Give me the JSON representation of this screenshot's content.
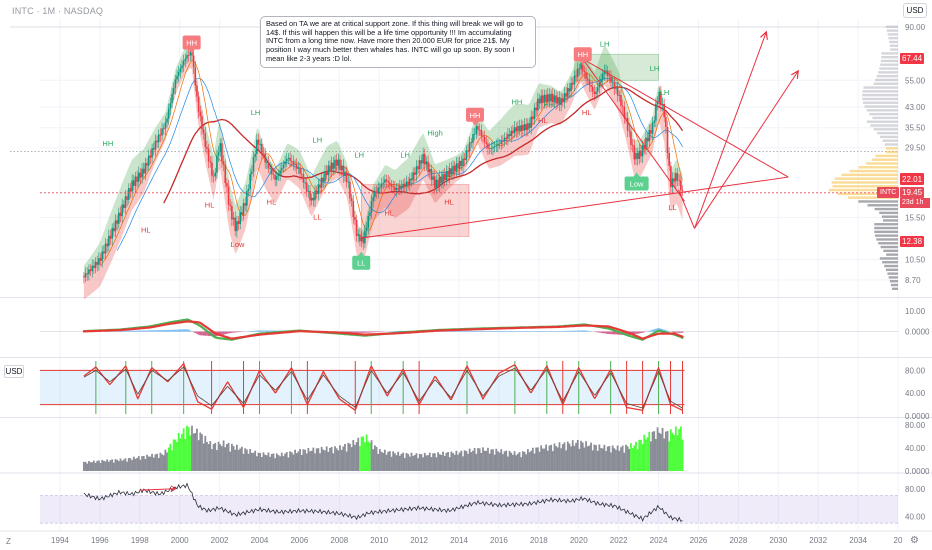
{
  "header": {
    "symbol_line": "INTC · 1M · NASDAQ",
    "currency": "USD"
  },
  "note": {
    "text": "Based on TA we are at critical support zone. If this thing will break we will go to 14$. If this will happen this will be a life time opportunity !!! Im accumulating INTC from a long time now. Have more then 20.000 EUR for price 21$. My position I way much better then whales has. INTC will go up soon. By soon I mean like 2-3 years :D lol."
  },
  "panes": {
    "third_pane_currency": "USD",
    "z_label": "Z"
  },
  "colors": {
    "bull": "#26a69a",
    "bear": "#ef5350",
    "green_fill": "#43a047",
    "red_fill": "#e53935",
    "histogram_highlight": "#4cff3a",
    "grid": "#f0f3fa",
    "axis_text": "#787b86",
    "drawing_red": "#e8303f",
    "last_price": "#e84a5a",
    "price_tag_red": "#f23645",
    "price_tag_yellow": "#f5c040"
  },
  "chart_data": [
    {
      "type": "candlestick",
      "title": "INTC · 1M · NASDAQ",
      "x_range": [
        1993,
        2036
      ],
      "y_scale": "log",
      "ylim": [
        7.5,
        96
      ],
      "x_ticks": [
        "1994",
        "1996",
        "1998",
        "2000",
        "2002",
        "2004",
        "2006",
        "2008",
        "2010",
        "2012",
        "2014",
        "2016",
        "2018",
        "2020",
        "2022",
        "2024",
        "2026",
        "2028",
        "2030",
        "2032",
        "2034",
        "20"
      ],
      "x_tick_values": [
        1994,
        1996,
        1998,
        2000,
        2002,
        2004,
        2006,
        2008,
        2010,
        2012,
        2014,
        2016,
        2018,
        2020,
        2022,
        2024,
        2026,
        2028,
        2030,
        2032,
        2034,
        2036
      ],
      "y_ticks": [
        "90.00",
        "55.00",
        "43.00",
        "35.50",
        "29.50",
        "15.50",
        "10.50",
        "8.70"
      ],
      "y_tick_values": [
        90,
        55,
        43,
        35.5,
        29.5,
        15.5,
        10.5,
        8.7
      ],
      "price_path": [
        [
          1995.2,
          9.0
        ],
        [
          1996.0,
          10.5
        ],
        [
          1997.0,
          16.0
        ],
        [
          1997.6,
          21.0
        ],
        [
          1998.2,
          24.0
        ],
        [
          1998.8,
          31.0
        ],
        [
          1999.3,
          37.0
        ],
        [
          1999.8,
          56.0
        ],
        [
          2000.3,
          68.0
        ],
        [
          2000.6,
          72.0
        ],
        [
          2000.9,
          44.0
        ],
        [
          2001.3,
          30.0
        ],
        [
          2001.7,
          22.0
        ],
        [
          2002.0,
          31.0
        ],
        [
          2002.5,
          17.0
        ],
        [
          2002.8,
          14.0
        ],
        [
          2003.3,
          18.0
        ],
        [
          2003.9,
          32.0
        ],
        [
          2004.3,
          26.0
        ],
        [
          2004.8,
          22.0
        ],
        [
          2005.4,
          27.0
        ],
        [
          2006.0,
          24.0
        ],
        [
          2006.6,
          18.0
        ],
        [
          2007.4,
          24.0
        ],
        [
          2007.9,
          26.0
        ],
        [
          2008.4,
          22.0
        ],
        [
          2008.9,
          13.0
        ],
        [
          2009.2,
          12.5
        ],
        [
          2009.7,
          19.0
        ],
        [
          2010.3,
          22.0
        ],
        [
          2010.8,
          20.0
        ],
        [
          2011.5,
          21.5
        ],
        [
          2012.2,
          27.0
        ],
        [
          2012.8,
          21.0
        ],
        [
          2013.5,
          23.5
        ],
        [
          2014.2,
          26.0
        ],
        [
          2014.9,
          36.0
        ],
        [
          2015.5,
          29.0
        ],
        [
          2016.1,
          31.0
        ],
        [
          2016.8,
          35.0
        ],
        [
          2017.5,
          36.0
        ],
        [
          2018.0,
          46.0
        ],
        [
          2018.6,
          47.0
        ],
        [
          2019.1,
          45.0
        ],
        [
          2019.6,
          52.0
        ],
        [
          2020.1,
          64.0
        ],
        [
          2020.3,
          58.0
        ],
        [
          2020.8,
          48.0
        ],
        [
          2021.3,
          61.0
        ],
        [
          2021.6,
          55.0
        ],
        [
          2022.0,
          48.0
        ],
        [
          2022.4,
          37.0
        ],
        [
          2022.8,
          27.0
        ],
        [
          2023.1,
          28.0
        ],
        [
          2023.7,
          36.0
        ],
        [
          2024.0,
          49.0
        ],
        [
          2024.3,
          40.0
        ],
        [
          2024.6,
          21.0
        ],
        [
          2024.9,
          23.0
        ],
        [
          2025.2,
          19.45
        ]
      ],
      "last_price": 19.45,
      "last_price_label": "19.45",
      "countdown_label": "23d 1h",
      "series_label": "INTC",
      "price_tags": [
        {
          "value": 67.44,
          "label": "67.44",
          "color": "#f23645"
        },
        {
          "value": 22.21,
          "label": "22.21",
          "color": "#f23645"
        },
        {
          "value": 22.01,
          "label": "22.01",
          "color": "#f23645"
        },
        {
          "value": 12.38,
          "label": "12.38",
          "color": "#f23645"
        }
      ],
      "annotations": [
        {
          "text": "HH",
          "x": 2000.6,
          "y": 78,
          "style": "badge-red"
        },
        {
          "text": "HH",
          "x": 2014.8,
          "y": 40,
          "style": "badge-red"
        },
        {
          "text": "HH",
          "x": 2020.2,
          "y": 70,
          "style": "badge-red"
        },
        {
          "text": "LL",
          "x": 2009.1,
          "y": 10.2,
          "style": "badge-green"
        },
        {
          "text": "Low",
          "x": 2022.9,
          "y": 21.2,
          "style": "badge-green"
        },
        {
          "text": "HH",
          "x": 1996.4,
          "y": 30,
          "style": "text-green"
        },
        {
          "text": "LH",
          "x": 2003.8,
          "y": 40,
          "style": "text-green"
        },
        {
          "text": "LH",
          "x": 2006.9,
          "y": 31,
          "style": "text-green"
        },
        {
          "text": "LH",
          "x": 2009.0,
          "y": 27,
          "style": "text-green"
        },
        {
          "text": "LH",
          "x": 2011.3,
          "y": 27,
          "style": "text-green"
        },
        {
          "text": "High",
          "x": 2012.8,
          "y": 33,
          "style": "text-green"
        },
        {
          "text": "HH",
          "x": 2016.9,
          "y": 44,
          "style": "text-green"
        },
        {
          "text": "HH",
          "x": 2018.5,
          "y": 43,
          "style": "text-green"
        },
        {
          "text": "LH",
          "x": 2021.3,
          "y": 75,
          "style": "text-green"
        },
        {
          "text": "LH",
          "x": 2023.8,
          "y": 60,
          "style": "text-green"
        },
        {
          "text": "LH",
          "x": 2024.3,
          "y": 48,
          "style": "text-green"
        },
        {
          "text": "HL",
          "x": 1998.3,
          "y": 13.5,
          "style": "text-red"
        },
        {
          "text": "HL",
          "x": 2001.5,
          "y": 17.0,
          "style": "text-red"
        },
        {
          "text": "HL",
          "x": 2004.6,
          "y": 17.5,
          "style": "text-red"
        },
        {
          "text": "Low",
          "x": 2002.9,
          "y": 11.8,
          "style": "text-red"
        },
        {
          "text": "LL",
          "x": 2006.9,
          "y": 15.2,
          "style": "text-red"
        },
        {
          "text": "HL",
          "x": 2010.5,
          "y": 15.8,
          "style": "text-red"
        },
        {
          "text": "HL",
          "x": 2013.5,
          "y": 17.5,
          "style": "text-red"
        },
        {
          "text": "HL",
          "x": 2018.2,
          "y": 37.0,
          "style": "text-red"
        },
        {
          "text": "HL",
          "x": 2020.4,
          "y": 40.0,
          "style": "text-red"
        },
        {
          "text": "LL",
          "x": 2024.7,
          "y": 16.6,
          "style": "text-red"
        }
      ],
      "zones": [
        {
          "kind": "red-box",
          "x": [
            2009.1,
            2014.5
          ],
          "y": [
            13.0,
            21.0
          ]
        },
        {
          "kind": "green-box",
          "x": [
            2019.8,
            2024.0
          ],
          "y": [
            55.0,
            70.0
          ]
        }
      ],
      "trendlines": [
        {
          "from": [
            2009.1,
            12.8
          ],
          "to": [
            2030.5,
            22.5
          ]
        },
        {
          "from": [
            2020.2,
            67.0
          ],
          "to": [
            2030.5,
            22.5
          ]
        },
        {
          "from": [
            2020.2,
            67.0
          ],
          "to": [
            2025.3,
            18.0
          ]
        },
        {
          "from": [
            2025.0,
            20.0
          ],
          "to": [
            2025.8,
            14.0
          ]
        },
        {
          "from": [
            2025.8,
            14.0
          ],
          "to": [
            2029.4,
            86.0
          ],
          "arrow": true
        },
        {
          "from": [
            2025.8,
            14.0
          ],
          "to": [
            2031.0,
            60.0
          ],
          "arrow": true
        }
      ]
    },
    {
      "type": "line",
      "title": "",
      "x_range": [
        1993,
        2036
      ],
      "ylim": [
        -12,
        16
      ],
      "y_ticks": [
        "10.00",
        "0.0000"
      ],
      "y_tick_values": [
        10,
        0
      ],
      "x": [
        1995.2,
        1997.0,
        1998.5,
        1999.5,
        2000.4,
        2001.0,
        2001.8,
        2002.6,
        2004.0,
        2006.0,
        2008.0,
        2009.3,
        2011.0,
        2013.0,
        2015.0,
        2017.0,
        2019.0,
        2020.3,
        2021.5,
        2022.5,
        2023.2,
        2024.0,
        2024.8,
        2025.2
      ],
      "series": [
        {
          "name": "",
          "values": [
            0.2,
            1.0,
            2.5,
            4.5,
            6.0,
            3.0,
            -3.0,
            -4.0,
            -1.0,
            0.5,
            -1.0,
            -2.0,
            -0.5,
            0.8,
            1.5,
            2.0,
            2.5,
            3.5,
            1.5,
            -2.0,
            -4.0,
            0.5,
            -1.5,
            -3.0
          ]
        },
        {
          "name": "",
          "values": [
            0.1,
            0.7,
            2.0,
            3.8,
            5.0,
            4.5,
            -1.0,
            -3.5,
            -1.5,
            0.2,
            -0.5,
            -1.5,
            -0.8,
            0.5,
            1.2,
            1.8,
            2.3,
            3.0,
            2.5,
            -0.5,
            -3.5,
            -1.0,
            -1.0,
            -2.5
          ]
        }
      ]
    },
    {
      "type": "line",
      "title": "",
      "x_range": [
        1993,
        2036
      ],
      "ylim": [
        0,
        100
      ],
      "y_ticks": [
        "80.00",
        "40.00",
        "0.0000"
      ],
      "y_tick_values": [
        80,
        40,
        0
      ],
      "band": [
        20,
        80
      ],
      "x": [
        1995.2,
        1995.8,
        1996.5,
        1997.3,
        1997.9,
        1998.6,
        1999.4,
        2000.2,
        2000.9,
        2001.6,
        2002.4,
        2003.2,
        2004.0,
        2004.8,
        2005.6,
        2006.4,
        2007.2,
        2008.0,
        2008.8,
        2009.6,
        2010.4,
        2011.2,
        2012.0,
        2012.8,
        2013.6,
        2014.4,
        2015.2,
        2016.0,
        2016.8,
        2017.6,
        2018.4,
        2019.2,
        2020.0,
        2020.8,
        2021.6,
        2022.4,
        2023.2,
        2024.0,
        2024.6,
        2025.2
      ],
      "series": [
        {
          "name": "",
          "values": [
            70,
            86,
            55,
            88,
            30,
            85,
            60,
            92,
            25,
            12,
            60,
            15,
            80,
            40,
            85,
            20,
            78,
            30,
            10,
            88,
            35,
            82,
            20,
            70,
            28,
            88,
            30,
            75,
            90,
            40,
            88,
            20,
            85,
            30,
            82,
            15,
            10,
            85,
            20,
            10
          ]
        },
        {
          "name": "",
          "values": [
            68,
            80,
            60,
            82,
            38,
            80,
            62,
            86,
            35,
            18,
            52,
            22,
            72,
            45,
            78,
            28,
            72,
            35,
            15,
            80,
            40,
            76,
            26,
            64,
            32,
            80,
            35,
            70,
            84,
            45,
            82,
            26,
            78,
            36,
            76,
            22,
            14,
            78,
            26,
            14
          ]
        }
      ]
    },
    {
      "type": "bar",
      "title": "",
      "x_range": [
        1993,
        2036
      ],
      "ylim": [
        0,
        90
      ],
      "y_ticks": [
        "80.00",
        "40.00",
        "0.0000"
      ],
      "y_tick_values": [
        80,
        40,
        0
      ],
      "x": [
        1995.2,
        1996.2,
        1997.2,
        1998.2,
        1999.2,
        1999.8,
        2000.4,
        2001.0,
        2001.6,
        2002.2,
        2003.0,
        2004.0,
        2005.0,
        2006.0,
        2007.0,
        2008.0,
        2008.8,
        2009.3,
        2010.0,
        2011.0,
        2012.0,
        2013.0,
        2014.0,
        2015.0,
        2016.0,
        2017.0,
        2018.0,
        2019.0,
        2020.0,
        2021.0,
        2022.0,
        2022.8,
        2023.4,
        2024.0,
        2024.5,
        2025.0
      ],
      "series": [
        {
          "name": "",
          "values": [
            15,
            18,
            20,
            25,
            30,
            55,
            75,
            65,
            45,
            48,
            40,
            30,
            28,
            35,
            38,
            40,
            50,
            60,
            35,
            30,
            28,
            30,
            32,
            38,
            35,
            30,
            40,
            45,
            50,
            42,
            40,
            45,
            60,
            70,
            65,
            72
          ]
        }
      ],
      "highlight": [
        {
          "x": [
            1999.4,
            2000.6
          ],
          "color": "#4cff3a"
        },
        {
          "x": [
            2009.0,
            2009.6
          ],
          "color": "#4cff3a"
        },
        {
          "x": [
            2022.6,
            2023.6
          ],
          "color": "#4cff3a"
        },
        {
          "x": [
            2024.5,
            2025.3
          ],
          "color": "#4cff3a"
        }
      ]
    },
    {
      "type": "line",
      "title": "",
      "x_range": [
        1993,
        2036
      ],
      "ylim": [
        20,
        100
      ],
      "y_ticks": [
        "80.00",
        "40.00"
      ],
      "y_tick_values": [
        80,
        40
      ],
      "band": [
        30,
        70
      ],
      "x": [
        1995.2,
        1996.0,
        1997.0,
        1997.6,
        1998.2,
        1999.0,
        1999.8,
        2000.4,
        2000.9,
        2001.4,
        2002.0,
        2002.8,
        2004.0,
        2005.0,
        2006.0,
        2007.0,
        2008.0,
        2008.9,
        2009.5,
        2010.5,
        2012.0,
        2013.5,
        2014.9,
        2016.0,
        2017.5,
        2018.6,
        2019.6,
        2020.2,
        2021.0,
        2021.8,
        2022.6,
        2023.2,
        2024.0,
        2024.6,
        2025.2
      ],
      "series": [
        {
          "name": "",
          "values": [
            72,
            65,
            75,
            72,
            78,
            72,
            82,
            85,
            55,
            48,
            52,
            42,
            50,
            46,
            48,
            47,
            44,
            38,
            45,
            48,
            52,
            48,
            60,
            56,
            58,
            64,
            62,
            66,
            58,
            55,
            44,
            36,
            54,
            38,
            34
          ]
        }
      ],
      "arrow": {
        "from": [
          1998.0,
          78
        ],
        "to": [
          1999.8,
          80
        ]
      }
    }
  ]
}
